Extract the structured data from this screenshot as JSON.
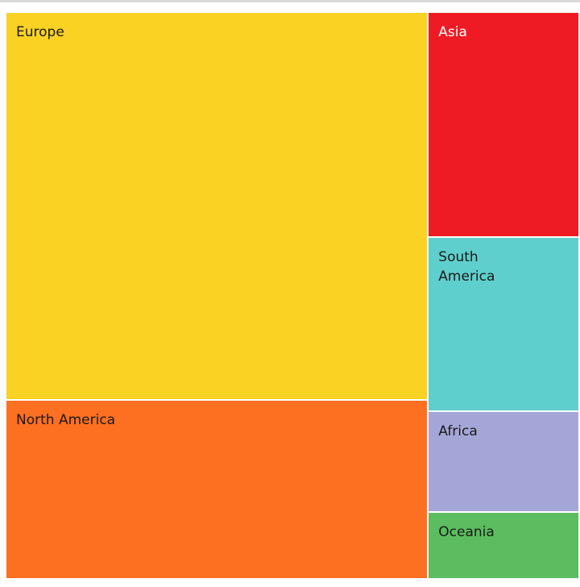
{
  "chart_data": {
    "type": "treemap",
    "title": "",
    "legend": "none",
    "grid": false,
    "tiles": [
      {
        "name": "Europe",
        "value": 47.2,
        "color": "#f9d223",
        "text_color": "#1a1a1a"
      },
      {
        "name": "North America",
        "value": 21.8,
        "color": "#fd6f21",
        "text_color": "#1a1a1a"
      },
      {
        "name": "Asia",
        "value": 9.8,
        "color": "#ee1b25",
        "text_color": "#ffffff"
      },
      {
        "name": "South America",
        "value": 7.6,
        "color": "#5fcfcd",
        "text_color": "#1a1a1a"
      },
      {
        "name": "Africa",
        "value": 4.4,
        "color": "#a5a6d8",
        "text_color": "#1a1a1a"
      },
      {
        "name": "Oceania",
        "value": 2.9,
        "color": "#5bbd5f",
        "text_color": "#1a1a1a"
      }
    ]
  }
}
